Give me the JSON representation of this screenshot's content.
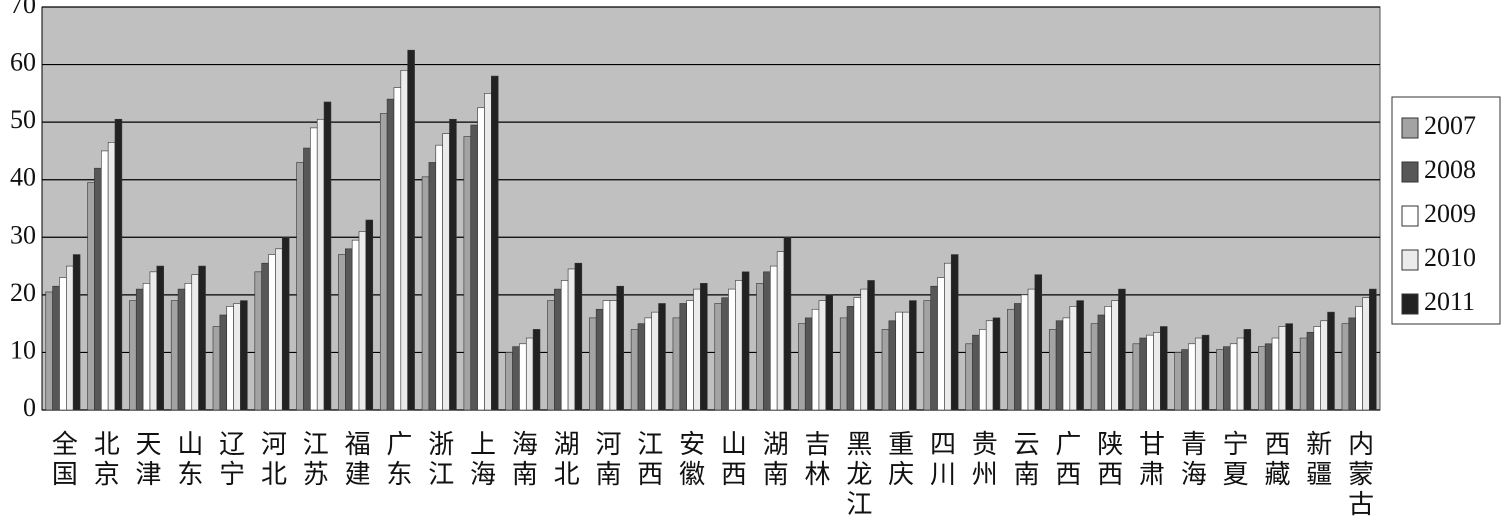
{
  "chart_data": {
    "type": "bar",
    "categories": [
      "全国",
      "北京",
      "天津",
      "山东",
      "辽宁",
      "河北",
      "江苏",
      "福建",
      "广东",
      "浙江",
      "上海",
      "海南",
      "湖北",
      "河南",
      "江西",
      "安徽",
      "山西",
      "湖南",
      "吉林",
      "黑龙江",
      "重庆",
      "四川",
      "贵州",
      "云南",
      "广西",
      "陕西",
      "甘肃",
      "青海",
      "宁夏",
      "西藏",
      "新疆",
      "内蒙古"
    ],
    "series": [
      {
        "name": "2007",
        "color": "#a3a3a3",
        "values": [
          20.5,
          39.5,
          19,
          19,
          14.5,
          24,
          43,
          27,
          51.5,
          40.5,
          47.5,
          10,
          19,
          16,
          14,
          16,
          18.5,
          22,
          15,
          16,
          14,
          19,
          11.5,
          17.5,
          14,
          15,
          11.5,
          10,
          10.5,
          11,
          12.5,
          15
        ]
      },
      {
        "name": "2008",
        "color": "#575757",
        "values": [
          21.5,
          42,
          21,
          21,
          16.5,
          25.5,
          45.5,
          28,
          54,
          43,
          49.5,
          11,
          21,
          17.5,
          15,
          18.5,
          19.5,
          24,
          16,
          18,
          15.5,
          21.5,
          13,
          18.5,
          15.5,
          16.5,
          12.5,
          10.5,
          11,
          11.5,
          13.5,
          16
        ]
      },
      {
        "name": "2009",
        "color": "#ffffff",
        "values": [
          23,
          45,
          22,
          22,
          18,
          27,
          49,
          29.5,
          56,
          46,
          52.5,
          11.5,
          22.5,
          19,
          16,
          19,
          21,
          25,
          17.5,
          19.5,
          17,
          23,
          14,
          20,
          16,
          18,
          13,
          11.5,
          11.5,
          12.5,
          14.5,
          18
        ]
      },
      {
        "name": "2010",
        "color": "#ebebeb",
        "values": [
          25,
          46.5,
          24,
          23.5,
          18.5,
          28,
          50.5,
          31,
          59,
          48,
          55,
          12.5,
          24.5,
          19,
          17,
          21,
          22.5,
          27.5,
          19,
          21,
          17,
          25.5,
          15.5,
          21,
          18,
          19,
          13.5,
          12.5,
          12.5,
          14.5,
          15.5,
          19.5
        ]
      },
      {
        "name": "2011",
        "color": "#222222",
        "values": [
          27,
          50.5,
          25,
          25,
          19,
          30,
          53.5,
          33,
          62.5,
          50.5,
          58,
          14,
          25.5,
          21.5,
          18.5,
          22,
          24,
          30,
          20,
          22.5,
          19,
          27,
          16,
          23.5,
          19,
          21,
          14.5,
          13,
          14,
          15,
          17,
          21
        ]
      }
    ],
    "ylim": [
      0,
      70
    ],
    "yticks": [
      0,
      10,
      20,
      30,
      40,
      50,
      60,
      70
    ],
    "grid": true,
    "legend": "right"
  }
}
